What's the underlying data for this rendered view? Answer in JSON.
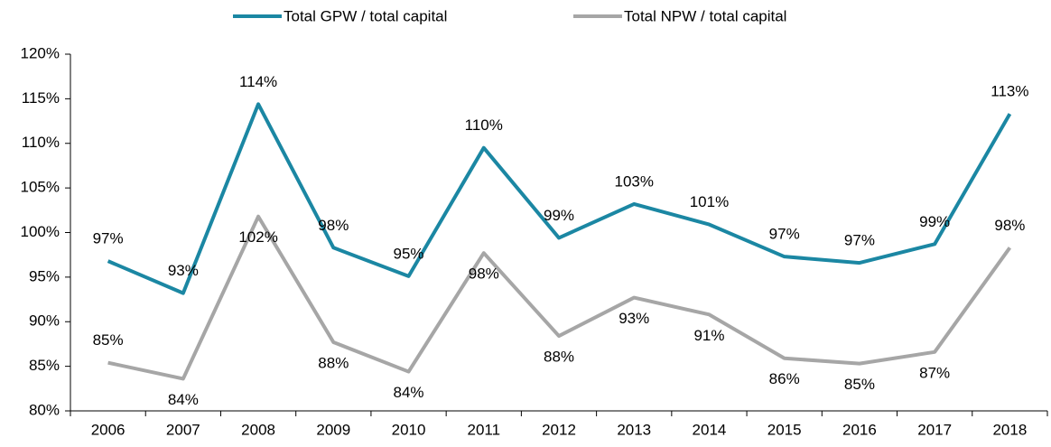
{
  "chart_data": {
    "type": "line",
    "categories": [
      "2006",
      "2007",
      "2008",
      "2009",
      "2010",
      "2011",
      "2012",
      "2013",
      "2014",
      "2015",
      "2016",
      "2017",
      "2018"
    ],
    "series": [
      {
        "name": "Total GPW / total capital",
        "color": "#1b87a3",
        "values": [
          96.8,
          93.2,
          114.4,
          98.3,
          95.1,
          109.5,
          99.4,
          103.2,
          100.9,
          97.3,
          96.6,
          98.7,
          113.3
        ],
        "value_labels": [
          "97%",
          "93%",
          "114%",
          "98%",
          "95%",
          "110%",
          "99%",
          "103%",
          "101%",
          "97%",
          "97%",
          "99%",
          "113%"
        ]
      },
      {
        "name": "Total NPW / total capital",
        "color": "#a6a6a6",
        "values": [
          85.4,
          83.6,
          101.8,
          87.7,
          84.4,
          97.7,
          88.4,
          92.7,
          90.8,
          85.9,
          85.3,
          86.6,
          98.3
        ],
        "value_labels": [
          "85%",
          "84%",
          "102%",
          "88%",
          "84%",
          "98%",
          "88%",
          "93%",
          "91%",
          "86%",
          "85%",
          "87%",
          "98%"
        ]
      }
    ],
    "ylim": [
      80,
      120
    ],
    "yticks": [
      {
        "value": 80,
        "label": "80%"
      },
      {
        "value": 85,
        "label": "85%"
      },
      {
        "value": 90,
        "label": "90%"
      },
      {
        "value": 95,
        "label": "95%"
      },
      {
        "value": 100,
        "label": "100%"
      },
      {
        "value": 105,
        "label": "105%"
      },
      {
        "value": 110,
        "label": "110%"
      },
      {
        "value": 115,
        "label": "115%"
      },
      {
        "value": 120,
        "label": "120%"
      }
    ],
    "legend": "top"
  }
}
